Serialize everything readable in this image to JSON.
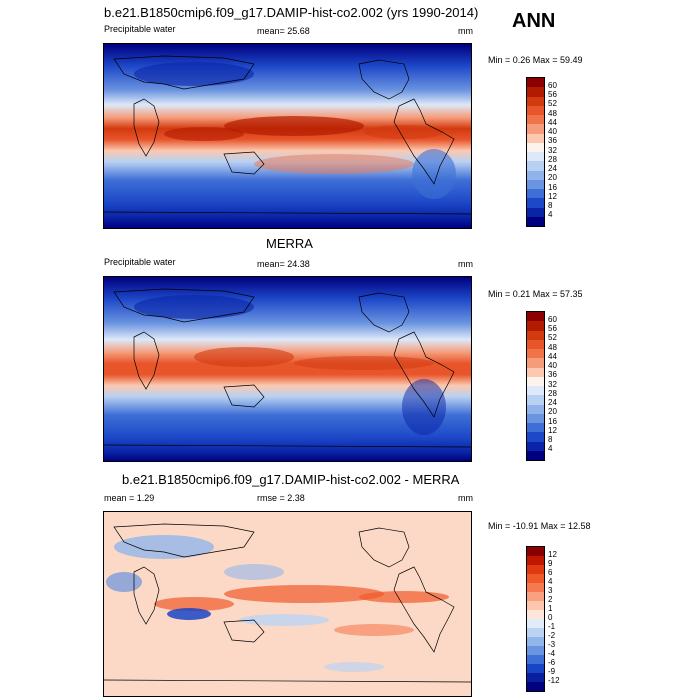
{
  "header": {
    "ann_label": "ANN"
  },
  "panels": [
    {
      "title": "b.e21.B1850cmip6.f09_g17.DAMIP-hist-co2.002 (yrs 1990-2014)",
      "left_label": "Precipitable water",
      "center_label": "mean=  25.68",
      "units": "mm",
      "minmax": "Min =   0.26 Max =  59.49",
      "colorbar": {
        "levels": [
          "60",
          "56",
          "52",
          "48",
          "44",
          "40",
          "36",
          "32",
          "28",
          "24",
          "20",
          "16",
          "12",
          "8",
          "4"
        ],
        "colors": [
          "#8b0000",
          "#b31b00",
          "#d23a10",
          "#e8552b",
          "#f0744a",
          "#f59c7a",
          "#fcc9b0",
          "#fdf2ec",
          "#dde8f8",
          "#b8d1f2",
          "#8fb3ea",
          "#6a93e0",
          "#3e6fd6",
          "#1d48c8",
          "#0a24a8",
          "#000080"
        ]
      }
    },
    {
      "title": "MERRA",
      "left_label": "Precipitable water",
      "center_label": "mean=  24.38",
      "units": "mm",
      "minmax": "Min =   0.21 Max =  57.35",
      "colorbar": {
        "levels": [
          "60",
          "56",
          "52",
          "48",
          "44",
          "40",
          "36",
          "32",
          "28",
          "24",
          "20",
          "16",
          "12",
          "8",
          "4"
        ],
        "colors": [
          "#8b0000",
          "#b31b00",
          "#d23a10",
          "#e8552b",
          "#f0744a",
          "#f59c7a",
          "#fcc9b0",
          "#fdf2ec",
          "#dde8f8",
          "#b8d1f2",
          "#8fb3ea",
          "#6a93e0",
          "#3e6fd6",
          "#1d48c8",
          "#0a24a8",
          "#000080"
        ]
      }
    },
    {
      "title": "b.e21.B1850cmip6.f09_g17.DAMIP-hist-co2.002 - MERRA",
      "left_label": "mean =   1.29",
      "center_label": "rmse =   2.38",
      "units": "mm",
      "minmax": "Min = -10.91 Max =  12.58",
      "colorbar": {
        "levels": [
          "12",
          "9",
          "6",
          "4",
          "3",
          "2",
          "1",
          "0",
          "-1",
          "-2",
          "-3",
          "-4",
          "-6",
          "-9",
          "-12"
        ],
        "colors": [
          "#8b0000",
          "#c01800",
          "#e03a10",
          "#f05a2a",
          "#f57a50",
          "#f9a07e",
          "#fcc7ae",
          "#fde6da",
          "#e2ecf8",
          "#bcd3f2",
          "#92b5ea",
          "#6a93e0",
          "#3e6fd6",
          "#1a44c6",
          "#08209e",
          "#000080"
        ]
      }
    }
  ]
}
